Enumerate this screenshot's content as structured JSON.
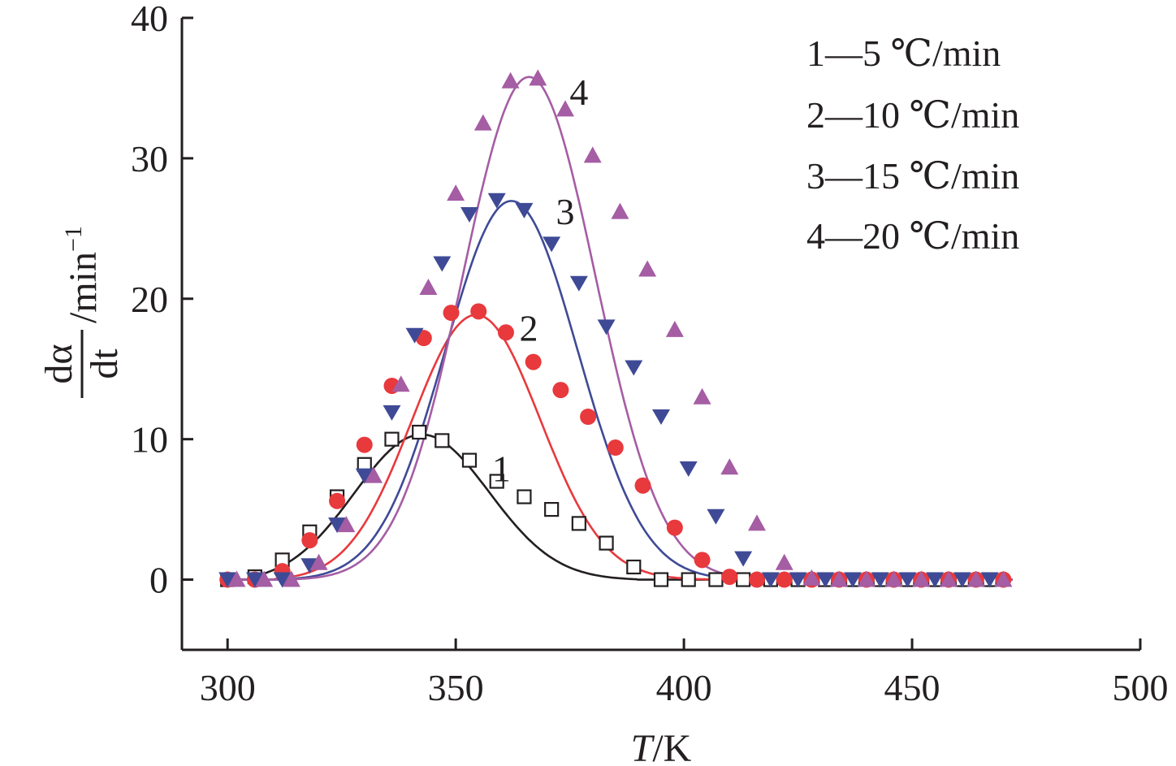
{
  "chart_data": {
    "type": "scatter",
    "xlabel_var": "T",
    "xlabel_unit": "/K",
    "ylabel_num": "dα",
    "ylabel_den": "dt",
    "ylabel_unit": "/min",
    "ylabel_exp": "−1",
    "xlim": [
      290,
      500
    ],
    "ylim": [
      -5,
      40
    ],
    "x_ticks": [
      300,
      350,
      400,
      450,
      500
    ],
    "y_ticks": [
      0,
      10,
      20,
      30,
      40
    ],
    "grid": false,
    "legend_position": "top-right",
    "legend": [
      {
        "label": "1—5 ℃/min"
      },
      {
        "label": "2—10 ℃/min"
      },
      {
        "label": "3—15 ℃/min"
      },
      {
        "label": "4—20 ℃/min"
      }
    ],
    "series": [
      {
        "id": "1",
        "marker": "square-open",
        "color": "#231f20",
        "peak": {
          "x": 342,
          "y": 10.4,
          "sigma": 15.5,
          "start": 305,
          "end": 390
        },
        "label_pos": {
          "x": 360,
          "y": 7.0
        },
        "points": [
          [
            300,
            0
          ],
          [
            306,
            0.2
          ],
          [
            312,
            1.4
          ],
          [
            318,
            3.4
          ],
          [
            324,
            5.9
          ],
          [
            330,
            8.2
          ],
          [
            336,
            10.0
          ],
          [
            342,
            10.5
          ],
          [
            347,
            9.9
          ],
          [
            353,
            8.5
          ],
          [
            359,
            7.0
          ],
          [
            365,
            5.9
          ],
          [
            371,
            5.0
          ],
          [
            377,
            4.0
          ],
          [
            383,
            2.6
          ],
          [
            389,
            0.9
          ],
          [
            395,
            0.0
          ],
          [
            401,
            0.0
          ],
          [
            407,
            0.0
          ],
          [
            413,
            0.0
          ],
          [
            419,
            0.0
          ],
          [
            425,
            0.0
          ],
          [
            431,
            0.0
          ],
          [
            437,
            0.0
          ],
          [
            443,
            0.0
          ],
          [
            449,
            0.0
          ],
          [
            455,
            0.0
          ],
          [
            461,
            0.0
          ],
          [
            467,
            0.0
          ]
        ]
      },
      {
        "id": "2",
        "marker": "circle-filled",
        "color": "#e8393d",
        "peak": {
          "x": 354,
          "y": 19.0,
          "sigma": 14.5,
          "start": 310,
          "end": 412
        },
        "label_pos": {
          "x": 366,
          "y": 17.0
        },
        "points": [
          [
            300,
            0
          ],
          [
            306,
            0
          ],
          [
            312,
            0.6
          ],
          [
            318,
            2.8
          ],
          [
            324,
            5.6
          ],
          [
            330,
            9.6
          ],
          [
            336,
            13.8
          ],
          [
            343,
            17.2
          ],
          [
            349,
            19.0
          ],
          [
            355,
            19.1
          ],
          [
            361,
            17.6
          ],
          [
            367,
            15.5
          ],
          [
            373,
            13.5
          ],
          [
            379,
            11.6
          ],
          [
            385,
            9.4
          ],
          [
            391,
            6.7
          ],
          [
            398,
            3.7
          ],
          [
            404,
            1.4
          ],
          [
            410,
            0.2
          ],
          [
            416,
            0
          ],
          [
            422,
            0
          ],
          [
            428,
            0
          ],
          [
            434,
            0
          ],
          [
            440,
            0
          ],
          [
            446,
            0
          ],
          [
            452,
            0
          ],
          [
            458,
            0
          ],
          [
            464,
            0
          ],
          [
            470,
            0
          ]
        ]
      },
      {
        "id": "3",
        "marker": "triangle-down-filled",
        "color": "#3f4a96",
        "peak": {
          "x": 362,
          "y": 27.0,
          "sigma": 15.0,
          "start": 312,
          "end": 418
        },
        "label_pos": {
          "x": 374,
          "y": 25.3
        },
        "points": [
          [
            300,
            0
          ],
          [
            306,
            0
          ],
          [
            312,
            0
          ],
          [
            318,
            1.0
          ],
          [
            324,
            3.9
          ],
          [
            330,
            7.4
          ],
          [
            336,
            11.9
          ],
          [
            341,
            17.4
          ],
          [
            347,
            22.5
          ],
          [
            353,
            26.0
          ],
          [
            359,
            27.0
          ],
          [
            365,
            26.3
          ],
          [
            371,
            23.9
          ],
          [
            377,
            21.1
          ],
          [
            383,
            18.0
          ],
          [
            389,
            15.1
          ],
          [
            395,
            11.6
          ],
          [
            401,
            7.9
          ],
          [
            407,
            4.5
          ],
          [
            413,
            1.5
          ],
          [
            419,
            0
          ],
          [
            425,
            0
          ],
          [
            431,
            0
          ],
          [
            437,
            0
          ],
          [
            443,
            0
          ],
          [
            449,
            0
          ],
          [
            455,
            0
          ],
          [
            461,
            0
          ],
          [
            467,
            0
          ]
        ]
      },
      {
        "id": "4",
        "marker": "triangle-up-filled",
        "color": "#a55da4",
        "peak": {
          "x": 366,
          "y": 35.8,
          "sigma": 15.0,
          "start": 314,
          "end": 420
        },
        "label_pos": {
          "x": 377,
          "y": 33.8
        },
        "points": [
          [
            302,
            0
          ],
          [
            308,
            0
          ],
          [
            314,
            0
          ],
          [
            320,
            1.2
          ],
          [
            326,
            3.9
          ],
          [
            332,
            7.4
          ],
          [
            338,
            13.9
          ],
          [
            344,
            20.8
          ],
          [
            350,
            27.5
          ],
          [
            356,
            32.5
          ],
          [
            362,
            35.5
          ],
          [
            368,
            35.7
          ],
          [
            374,
            33.5
          ],
          [
            380,
            30.2
          ],
          [
            386,
            26.2
          ],
          [
            392,
            22.1
          ],
          [
            398,
            17.8
          ],
          [
            404,
            13.0
          ],
          [
            410,
            8.0
          ],
          [
            416,
            4.0
          ],
          [
            422,
            1.2
          ],
          [
            428,
            0.1
          ],
          [
            434,
            0
          ],
          [
            440,
            0
          ],
          [
            446,
            0
          ],
          [
            452,
            0
          ],
          [
            458,
            0
          ],
          [
            464,
            0
          ],
          [
            470,
            0
          ]
        ]
      }
    ]
  }
}
